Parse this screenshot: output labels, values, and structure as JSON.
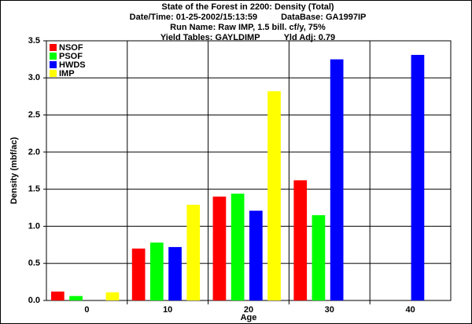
{
  "chart_data": {
    "type": "bar",
    "title": "State of the Forest in 2200: Density (Total)",
    "subtitle": [
      [
        "Date/Time: 01-25-2002/15:13:59",
        "DataBase: GA1997IP"
      ],
      [
        "Run Name: Raw IMP, 1.5 bill. cf/y, 75%"
      ],
      [
        "Yield Tables: GAYLDIMP",
        "Yld Adj: 0.79"
      ]
    ],
    "x_label": "Age",
    "y_label": "Density (mbf/ac)",
    "categories": [
      "0",
      "10",
      "20",
      "30",
      "40"
    ],
    "series": [
      {
        "name": "NSOF",
        "color": "#ff0000",
        "values": [
          0.12,
          0.7,
          1.4,
          1.62,
          null
        ]
      },
      {
        "name": "PSOF",
        "color": "#00ff00",
        "values": [
          0.06,
          0.78,
          1.44,
          1.15,
          null
        ]
      },
      {
        "name": "HWDS",
        "color": "#0000ff",
        "values": [
          null,
          0.72,
          1.21,
          3.25,
          3.31
        ]
      },
      {
        "name": "IMP",
        "color": "#ffff00",
        "values": [
          0.11,
          1.29,
          2.82,
          null,
          null
        ]
      }
    ],
    "ylim": [
      0,
      3.5
    ],
    "yticks": [
      {
        "value": 0,
        "label": "0.0"
      },
      0.5,
      {
        "value": 1,
        "label": "1.0"
      },
      1.5,
      {
        "value": 2,
        "label": "2.0"
      },
      2.5,
      {
        "value": 3,
        "label": "3.0"
      },
      3.5
    ],
    "grid": true,
    "legend": "upper-left"
  }
}
